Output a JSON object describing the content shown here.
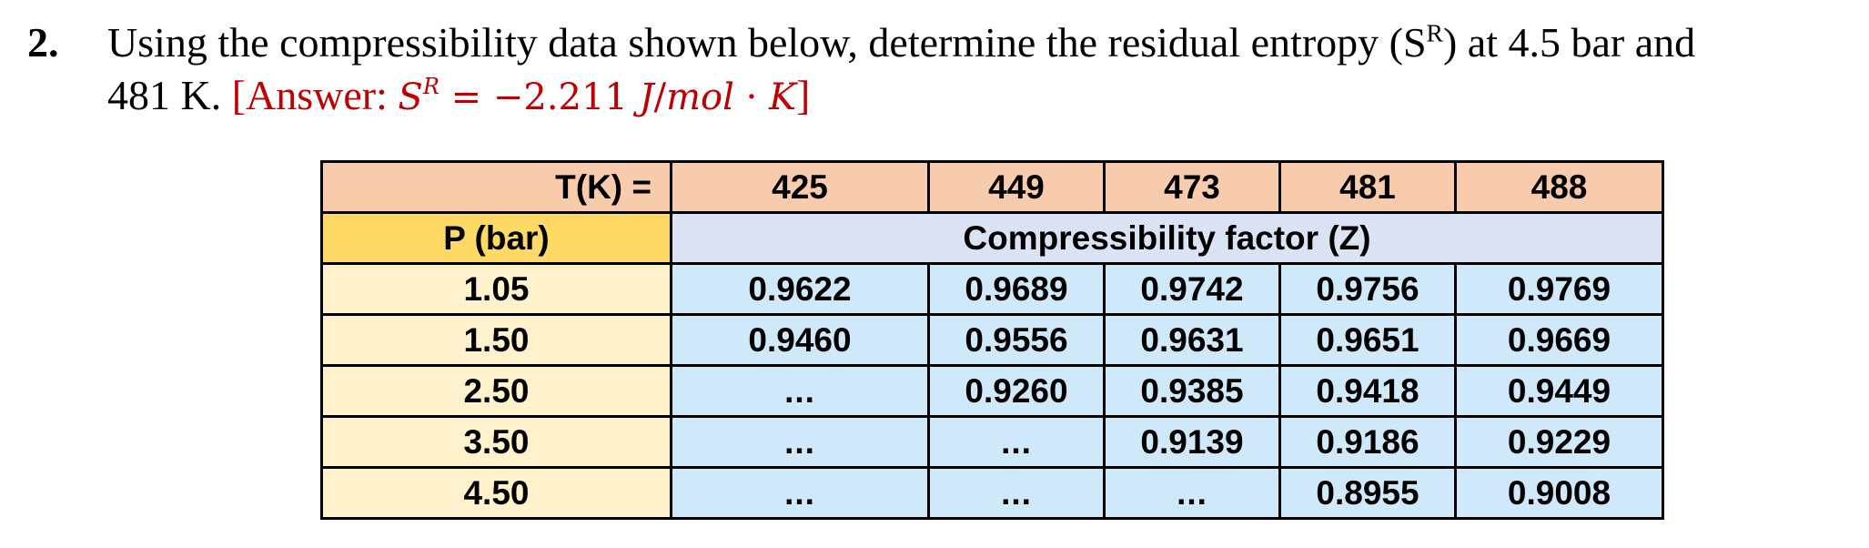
{
  "problem": {
    "number": "2.",
    "text_line1_pre": "Using the compressibility data shown below, determine the residual entropy (S",
    "text_sup": "R",
    "text_line1_post": ") at 4.5 bar and",
    "text_line2": "481 K.",
    "answer_open": "[Answer: ",
    "answer_symbol": "S",
    "answer_sup": "R",
    "answer_eq": " = −2.211 ",
    "answer_units_num": "J",
    "answer_units_slash": "/",
    "answer_units_mol": "mol",
    "answer_units_dot": " · ",
    "answer_units_k": "K",
    "answer_close": "]",
    "colors": {
      "answer": "#c00000"
    }
  },
  "table": {
    "temp_label": "T(K) =",
    "temperatures": [
      "425",
      "449",
      "473",
      "481",
      "488"
    ],
    "pressure_label": "P (bar)",
    "z_label": "Compressibility factor (Z)",
    "rows": [
      {
        "p": "1.05",
        "z": [
          "0.9622",
          "0.9689",
          "0.9742",
          "0.9756",
          "0.9769"
        ]
      },
      {
        "p": "1.50",
        "z": [
          "0.9460",
          "0.9556",
          "0.9631",
          "0.9651",
          "0.9669"
        ]
      },
      {
        "p": "2.50",
        "z": [
          "...",
          "0.9260",
          "0.9385",
          "0.9418",
          "0.9449"
        ]
      },
      {
        "p": "3.50",
        "z": [
          "...",
          "...",
          "0.9139",
          "0.9186",
          "0.9229"
        ]
      },
      {
        "p": "4.50",
        "z": [
          "...",
          "...",
          "...",
          "0.8955",
          "0.9008"
        ]
      }
    ],
    "colors": {
      "header": "#f8cbad",
      "pressure_header": "#ffd966",
      "z_header": "#dae3f3",
      "pressure_cells": "#fff2cc",
      "z_cells": "#cfe9fb"
    }
  }
}
